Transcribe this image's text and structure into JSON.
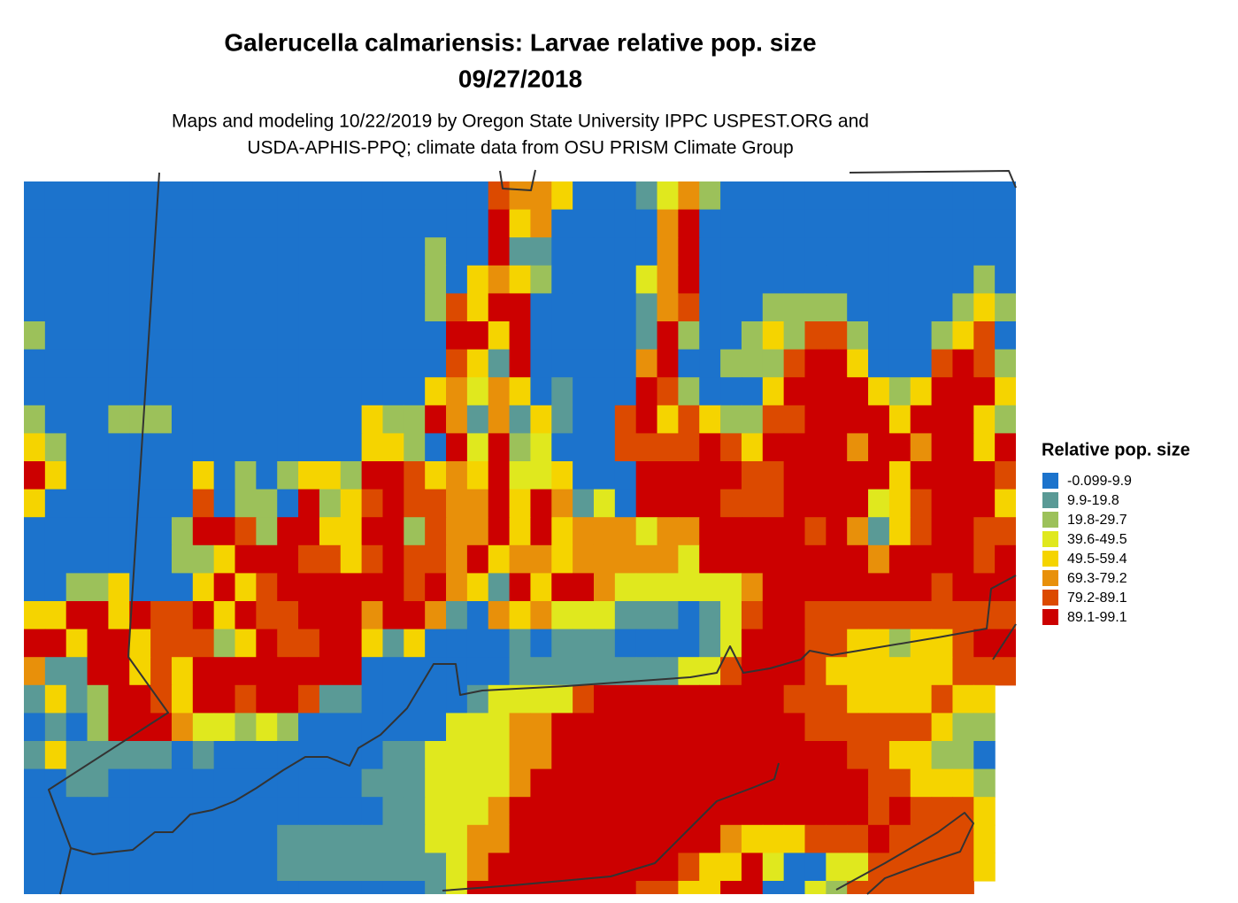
{
  "title": [
    "Galerucella calmariensis: Larvae relative pop. size",
    "09/27/2018"
  ],
  "subtitle": [
    "Maps and modeling 10/22/2019 by Oregon State University IPPC USPEST.ORG and",
    "USDA-APHIS-PPQ; climate data from OSU PRISM Climate Group"
  ],
  "legend": {
    "title": "Relative pop. size",
    "labels": [
      "-0.099-9.9",
      "9.9-19.8",
      "19.8-29.7",
      "39.6-49.5",
      "49.5-59.4",
      "69.3-79.2",
      "79.2-89.1",
      "89.1-99.1"
    ],
    "colors": [
      "#1c73cc",
      "#5a9a96",
      "#9cc15a",
      "#e0e81e",
      "#f5d400",
      "#e8900a",
      "#dc4a00",
      "#cc0000"
    ]
  },
  "grid": [
    [
      0,
      0,
      0,
      0,
      0,
      0,
      0,
      0,
      0,
      0,
      0,
      0,
      0,
      0,
      0,
      0,
      0,
      0,
      0,
      0,
      0,
      0,
      6,
      5,
      5,
      4,
      0,
      0,
      0,
      1,
      3,
      5,
      2,
      0,
      0,
      0,
      0,
      0,
      0,
      0,
      0,
      0,
      0,
      0,
      0,
      0,
      0
    ],
    [
      0,
      0,
      0,
      0,
      0,
      0,
      0,
      0,
      0,
      0,
      0,
      0,
      0,
      0,
      0,
      0,
      0,
      0,
      0,
      0,
      0,
      0,
      7,
      4,
      5,
      0,
      0,
      0,
      0,
      0,
      5,
      7,
      0,
      0,
      0,
      0,
      0,
      0,
      0,
      0,
      0,
      0,
      0,
      0,
      0,
      0,
      0
    ],
    [
      0,
      0,
      0,
      0,
      0,
      0,
      0,
      0,
      0,
      0,
      0,
      0,
      0,
      0,
      0,
      0,
      0,
      0,
      0,
      2,
      0,
      0,
      7,
      1,
      1,
      0,
      0,
      0,
      0,
      0,
      5,
      7,
      0,
      0,
      0,
      0,
      0,
      0,
      0,
      0,
      0,
      0,
      0,
      0,
      0,
      0,
      0
    ],
    [
      0,
      0,
      0,
      0,
      0,
      0,
      0,
      0,
      0,
      0,
      0,
      0,
      0,
      0,
      0,
      0,
      0,
      0,
      0,
      2,
      0,
      4,
      5,
      4,
      2,
      0,
      0,
      0,
      0,
      3,
      5,
      7,
      0,
      0,
      0,
      0,
      0,
      0,
      0,
      0,
      0,
      0,
      0,
      0,
      0,
      2,
      0
    ],
    [
      0,
      0,
      0,
      0,
      0,
      0,
      0,
      0,
      0,
      0,
      0,
      0,
      0,
      0,
      0,
      0,
      0,
      0,
      0,
      2,
      6,
      4,
      7,
      7,
      0,
      0,
      0,
      0,
      0,
      1,
      5,
      6,
      0,
      0,
      0,
      2,
      2,
      2,
      2,
      0,
      0,
      0,
      0,
      0,
      2,
      4,
      2
    ],
    [
      2,
      0,
      0,
      0,
      0,
      0,
      0,
      0,
      0,
      0,
      0,
      0,
      0,
      0,
      0,
      0,
      0,
      0,
      0,
      0,
      7,
      7,
      4,
      7,
      0,
      0,
      0,
      0,
      0,
      1,
      7,
      2,
      0,
      0,
      2,
      4,
      2,
      6,
      6,
      2,
      0,
      0,
      0,
      2,
      4,
      6,
      0
    ],
    [
      0,
      0,
      0,
      0,
      0,
      0,
      0,
      0,
      0,
      0,
      0,
      0,
      0,
      0,
      0,
      0,
      0,
      0,
      0,
      0,
      6,
      4,
      1,
      7,
      0,
      0,
      0,
      0,
      0,
      5,
      7,
      0,
      0,
      2,
      2,
      2,
      6,
      7,
      7,
      4,
      0,
      0,
      0,
      6,
      7,
      6,
      2
    ],
    [
      0,
      0,
      0,
      0,
      0,
      0,
      0,
      0,
      0,
      0,
      0,
      0,
      0,
      0,
      0,
      0,
      0,
      0,
      0,
      4,
      5,
      3,
      5,
      4,
      0,
      1,
      0,
      0,
      0,
      7,
      6,
      2,
      0,
      0,
      0,
      4,
      7,
      7,
      7,
      7,
      4,
      2,
      4,
      7,
      7,
      7,
      4
    ],
    [
      2,
      0,
      0,
      0,
      2,
      2,
      2,
      0,
      0,
      0,
      0,
      0,
      0,
      0,
      0,
      0,
      4,
      2,
      2,
      7,
      5,
      1,
      5,
      1,
      4,
      1,
      0,
      0,
      6,
      7,
      4,
      6,
      4,
      2,
      2,
      6,
      6,
      7,
      7,
      7,
      7,
      4,
      7,
      7,
      7,
      4,
      2
    ],
    [
      4,
      2,
      0,
      0,
      0,
      0,
      0,
      0,
      0,
      0,
      0,
      0,
      0,
      0,
      0,
      0,
      4,
      4,
      2,
      0,
      7,
      3,
      7,
      2,
      3,
      0,
      0,
      0,
      6,
      6,
      6,
      6,
      7,
      6,
      4,
      7,
      7,
      7,
      7,
      5,
      7,
      7,
      5,
      7,
      7,
      4,
      7
    ],
    [
      7,
      4,
      0,
      0,
      0,
      0,
      0,
      0,
      4,
      0,
      2,
      0,
      2,
      4,
      4,
      2,
      7,
      7,
      6,
      4,
      5,
      4,
      7,
      3,
      3,
      4,
      0,
      0,
      0,
      7,
      7,
      7,
      7,
      7,
      6,
      6,
      7,
      7,
      7,
      7,
      7,
      4,
      7,
      7,
      7,
      7,
      6
    ],
    [
      4,
      0,
      0,
      0,
      0,
      0,
      0,
      0,
      6,
      0,
      2,
      2,
      0,
      7,
      2,
      4,
      6,
      7,
      6,
      6,
      5,
      5,
      7,
      4,
      7,
      5,
      1,
      3,
      0,
      7,
      7,
      7,
      7,
      6,
      6,
      6,
      7,
      7,
      7,
      7,
      3,
      4,
      6,
      7,
      7,
      7,
      4
    ],
    [
      0,
      0,
      0,
      0,
      0,
      0,
      0,
      2,
      7,
      7,
      6,
      2,
      7,
      7,
      4,
      4,
      7,
      7,
      2,
      6,
      5,
      5,
      7,
      4,
      7,
      4,
      5,
      5,
      5,
      3,
      5,
      5,
      7,
      7,
      7,
      7,
      7,
      6,
      7,
      5,
      1,
      4,
      6,
      7,
      7,
      6,
      6
    ],
    [
      0,
      0,
      0,
      0,
      0,
      0,
      0,
      2,
      2,
      4,
      7,
      7,
      7,
      6,
      6,
      4,
      6,
      7,
      6,
      6,
      5,
      7,
      4,
      5,
      5,
      4,
      5,
      5,
      5,
      5,
      5,
      3,
      7,
      7,
      7,
      7,
      7,
      7,
      7,
      7,
      5,
      7,
      7,
      7,
      7,
      6,
      7
    ],
    [
      0,
      0,
      2,
      2,
      4,
      0,
      0,
      0,
      4,
      7,
      4,
      6,
      7,
      7,
      7,
      7,
      7,
      7,
      6,
      7,
      5,
      4,
      1,
      7,
      4,
      7,
      7,
      5,
      3,
      3,
      3,
      3,
      3,
      3,
      5,
      7,
      7,
      7,
      7,
      7,
      7,
      7,
      7,
      6,
      7,
      7,
      7
    ],
    [
      4,
      4,
      7,
      7,
      4,
      7,
      6,
      6,
      7,
      4,
      7,
      6,
      6,
      7,
      7,
      7,
      5,
      7,
      7,
      5,
      1,
      0,
      5,
      4,
      5,
      3,
      3,
      3,
      1,
      1,
      1,
      0,
      1,
      3,
      6,
      7,
      7,
      6,
      6,
      6,
      6,
      6,
      6,
      6,
      6,
      6,
      6
    ],
    [
      7,
      7,
      4,
      7,
      7,
      4,
      6,
      6,
      6,
      2,
      4,
      7,
      6,
      6,
      7,
      7,
      4,
      1,
      4,
      0,
      0,
      0,
      0,
      1,
      0,
      1,
      1,
      1,
      0,
      0,
      0,
      0,
      1,
      3,
      7,
      7,
      7,
      6,
      6,
      4,
      4,
      2,
      4,
      4,
      6,
      7,
      7
    ],
    [
      5,
      1,
      1,
      7,
      7,
      4,
      6,
      4,
      7,
      7,
      7,
      7,
      7,
      7,
      7,
      7,
      0,
      0,
      0,
      0,
      0,
      0,
      0,
      1,
      1,
      1,
      1,
      1,
      1,
      1,
      1,
      3,
      3,
      6,
      7,
      7,
      7,
      6,
      4,
      4,
      4,
      4,
      4,
      4,
      6,
      6,
      6
    ],
    [
      1,
      4,
      1,
      2,
      7,
      7,
      6,
      4,
      7,
      7,
      6,
      7,
      7,
      6,
      1,
      1,
      0,
      0,
      0,
      0,
      0,
      1,
      3,
      3,
      3,
      3,
      6,
      7,
      7,
      7,
      7,
      7,
      7,
      7,
      7,
      7,
      6,
      6,
      6,
      4,
      4,
      4,
      4,
      6,
      4,
      4,
      null
    ],
    [
      0,
      1,
      0,
      2,
      7,
      7,
      7,
      5,
      3,
      3,
      2,
      3,
      2,
      0,
      0,
      0,
      0,
      0,
      0,
      0,
      3,
      3,
      3,
      5,
      5,
      7,
      7,
      7,
      7,
      7,
      7,
      7,
      7,
      7,
      7,
      7,
      7,
      6,
      6,
      6,
      6,
      6,
      6,
      4,
      2,
      2,
      null
    ],
    [
      1,
      4,
      1,
      1,
      1,
      1,
      1,
      0,
      1,
      0,
      0,
      0,
      0,
      0,
      0,
      0,
      0,
      1,
      1,
      3,
      3,
      3,
      3,
      5,
      5,
      7,
      7,
      7,
      7,
      7,
      7,
      7,
      7,
      7,
      7,
      7,
      7,
      7,
      7,
      6,
      6,
      4,
      4,
      2,
      2,
      0,
      null
    ],
    [
      0,
      0,
      1,
      1,
      0,
      0,
      0,
      0,
      0,
      0,
      0,
      0,
      0,
      0,
      0,
      0,
      1,
      1,
      1,
      3,
      3,
      3,
      3,
      5,
      7,
      7,
      7,
      7,
      7,
      7,
      7,
      7,
      7,
      7,
      7,
      7,
      7,
      7,
      7,
      7,
      6,
      6,
      4,
      4,
      4,
      2,
      null
    ],
    [
      0,
      0,
      0,
      0,
      0,
      0,
      0,
      0,
      0,
      0,
      0,
      0,
      0,
      0,
      0,
      0,
      0,
      1,
      1,
      3,
      3,
      3,
      5,
      7,
      7,
      7,
      7,
      7,
      7,
      7,
      7,
      7,
      7,
      7,
      7,
      7,
      7,
      7,
      7,
      7,
      6,
      7,
      6,
      6,
      6,
      4,
      null
    ],
    [
      0,
      0,
      0,
      0,
      0,
      0,
      0,
      0,
      0,
      0,
      0,
      0,
      1,
      1,
      1,
      1,
      1,
      1,
      1,
      3,
      3,
      5,
      5,
      7,
      7,
      7,
      7,
      7,
      7,
      7,
      7,
      7,
      7,
      5,
      4,
      4,
      4,
      6,
      6,
      6,
      7,
      6,
      6,
      6,
      6,
      4,
      null
    ],
    [
      0,
      0,
      0,
      0,
      0,
      0,
      0,
      0,
      0,
      0,
      0,
      0,
      1,
      1,
      1,
      1,
      1,
      1,
      1,
      1,
      3,
      5,
      7,
      7,
      7,
      7,
      7,
      7,
      7,
      7,
      7,
      6,
      4,
      4,
      7,
      3,
      0,
      0,
      3,
      3,
      6,
      6,
      6,
      6,
      6,
      4,
      null
    ],
    [
      0,
      0,
      0,
      0,
      0,
      0,
      0,
      0,
      0,
      0,
      0,
      0,
      0,
      0,
      0,
      0,
      0,
      0,
      0,
      1,
      3,
      7,
      7,
      7,
      7,
      7,
      7,
      7,
      7,
      6,
      6,
      4,
      4,
      7,
      7,
      0,
      0,
      3,
      2,
      6,
      6,
      6,
      6,
      6,
      6,
      null,
      null
    ]
  ]
}
